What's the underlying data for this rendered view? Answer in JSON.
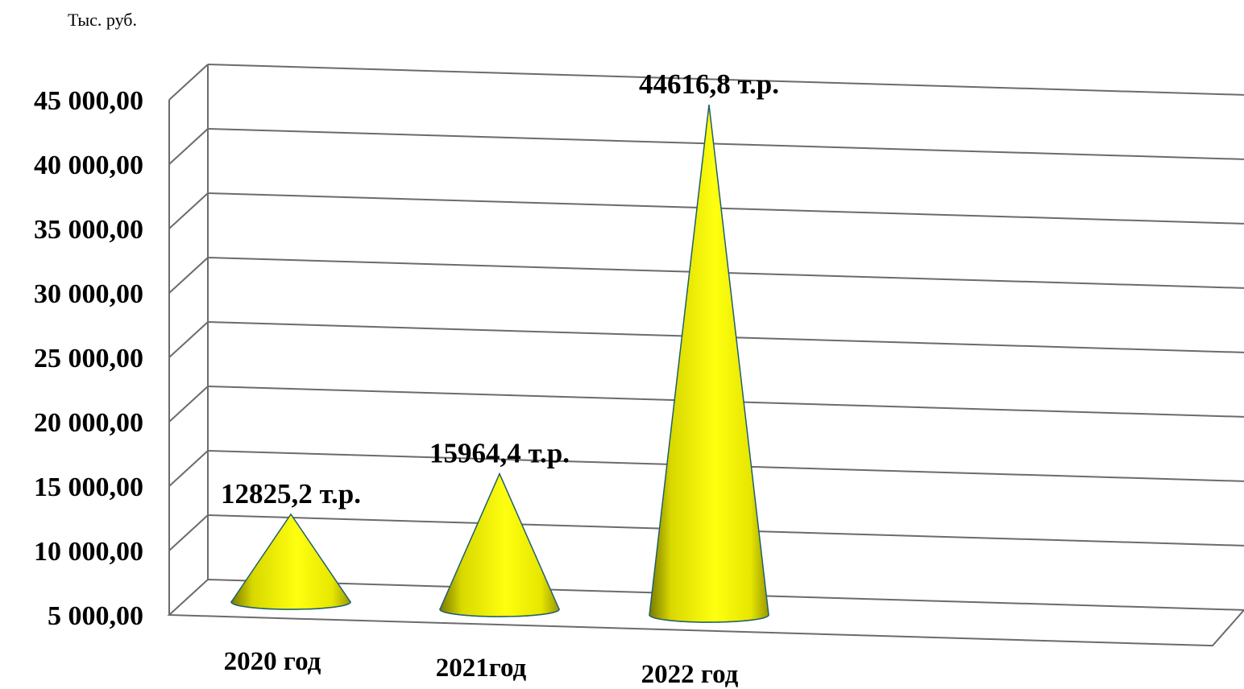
{
  "unit_label": "Тыс. руб.",
  "chart_data": {
    "type": "bar",
    "style": "3d-cone",
    "categories": [
      "2020 год",
      "2021год",
      "2022 год"
    ],
    "values": [
      12825.2,
      15964.4,
      44616.8
    ],
    "data_labels": [
      "12825,2 т.р.",
      "15964,4 т.р.",
      "44616,8 т.р."
    ],
    "ylim": [
      5000,
      45000
    ],
    "yticks": [
      5000,
      10000,
      15000,
      20000,
      25000,
      30000,
      35000,
      40000,
      45000
    ],
    "ytick_labels": [
      "5 000,00",
      "10 000,00",
      "15 000,00",
      "20 000,00",
      "25 000,00",
      "30 000,00",
      "35 000,00",
      "40 000,00",
      "45 000,00"
    ],
    "grid": true,
    "legend": "none",
    "colors": {
      "cone_fill": "#ffff00",
      "cone_shade": "#8a8a00",
      "cone_outline": "#1f5f6f",
      "grid": "#6b6b6b"
    }
  }
}
